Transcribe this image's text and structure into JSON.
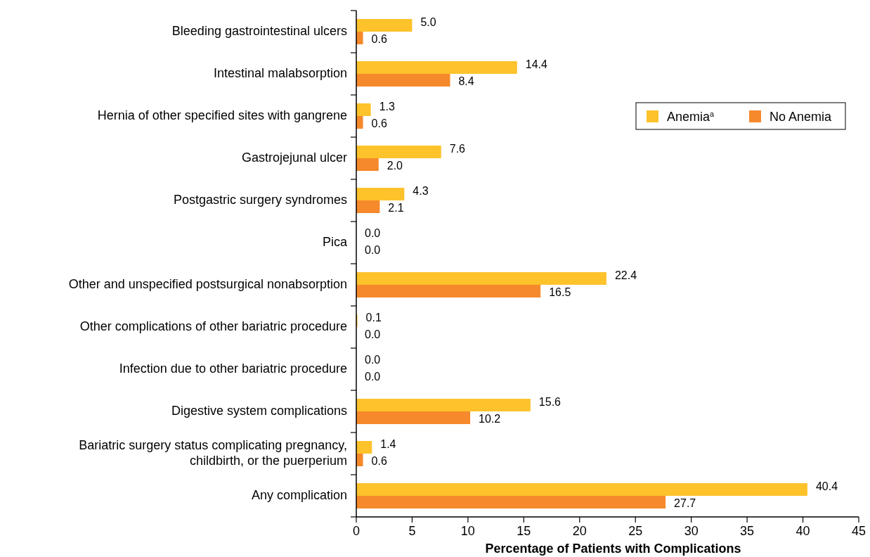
{
  "chart_data": {
    "type": "bar",
    "orientation": "horizontal",
    "xlabel": "Percentage of Patients with Complications",
    "categories": [
      "Bleeding gastrointestinal ulcers",
      "Intestinal malabsorption",
      "Hernia of other specified sites with gangrene",
      "Gastrojejunal ulcer",
      "Postgastric surgery syndromes",
      "Pica",
      "Other and unspecified postsurgical nonabsorption",
      "Other complications of other bariatric procedure",
      "Infection due to other bariatric procedure",
      "Digestive system complications",
      "Bariatric surgery status complicating pregnancy, childbirth, or the puerperium",
      "Any complication"
    ],
    "series": [
      {
        "name": "Anemia$^{a}$",
        "color": "#fec22b",
        "values": [
          5.0,
          14.4,
          1.3,
          7.6,
          4.3,
          0.0,
          22.4,
          0.1,
          0.0,
          15.6,
          1.4,
          40.4
        ],
        "value_labels": [
          "5.0",
          "14.4",
          "1.3",
          "7.6",
          "4.3",
          "0.0",
          "22.4",
          "0.1",
          "0.0",
          "15.6",
          "1.4",
          "40.4"
        ]
      },
      {
        "name": "No Anemia",
        "color": "#f5892b",
        "values": [
          0.6,
          8.4,
          0.6,
          2.0,
          2.1,
          0.0,
          16.5,
          0.0,
          0.0,
          10.2,
          0.6,
          27.7
        ],
        "value_labels": [
          "0.6",
          "8.4",
          "0.6",
          "2.0",
          "2.1",
          "0.0",
          "16.5",
          "0.0",
          "0.0",
          "10.2",
          "0.6",
          "27.7"
        ]
      }
    ],
    "xlim": [
      0,
      45
    ],
    "xticks": [
      0,
      5,
      10,
      15,
      20,
      25,
      30,
      35,
      40,
      45
    ],
    "legend": "top right",
    "grid": false
  }
}
